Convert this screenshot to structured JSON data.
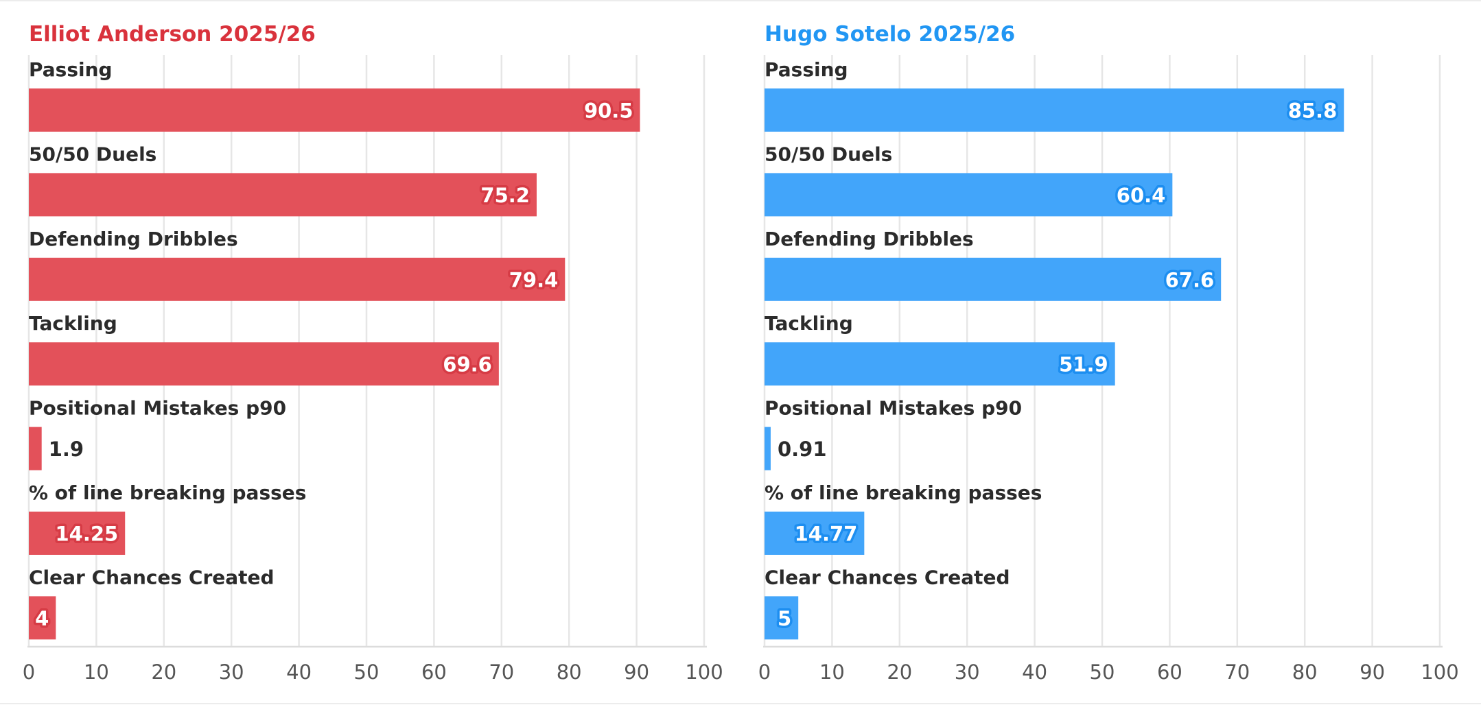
{
  "colors": {
    "player_one": "#e3515a",
    "player_one_stroke": "#d63b45",
    "player_one_title": "#d9323c",
    "player_two": "#42a5fa",
    "player_two_stroke": "#1d8ef0",
    "player_two_title": "#2196f3"
  },
  "chart_data": [
    {
      "type": "bar",
      "orientation": "horizontal",
      "title": "Elliot Anderson 2025/26",
      "color_key": "player_one",
      "categories": [
        "Passing",
        "50/50 Duels",
        "Defending Dribbles",
        "Tackling",
        "Positional Mistakes p90",
        "% of line breaking passes",
        "Clear Chances Created"
      ],
      "values": [
        90.5,
        75.2,
        79.4,
        69.6,
        1.9,
        14.25,
        4
      ],
      "value_labels": [
        "90.5",
        "75.2",
        "79.4",
        "69.6",
        "1.9",
        "14.25",
        "4"
      ],
      "xlim": [
        0,
        100
      ],
      "ticks": [
        "0",
        "10",
        "20",
        "30",
        "40",
        "50",
        "60",
        "70",
        "80",
        "90",
        "100"
      ],
      "grid": true
    },
    {
      "type": "bar",
      "orientation": "horizontal",
      "title": "Hugo Sotelo 2025/26",
      "color_key": "player_two",
      "categories": [
        "Passing",
        "50/50 Duels",
        "Defending Dribbles",
        "Tackling",
        "Positional Mistakes p90",
        "% of line breaking passes",
        "Clear Chances Created"
      ],
      "values": [
        85.8,
        60.4,
        67.6,
        51.9,
        0.91,
        14.77,
        5
      ],
      "value_labels": [
        "85.8",
        "60.4",
        "67.6",
        "51.9",
        "0.91",
        "14.77",
        "5"
      ],
      "xlim": [
        0,
        100
      ],
      "ticks": [
        "0",
        "10",
        "20",
        "30",
        "40",
        "50",
        "60",
        "70",
        "80",
        "90",
        "100"
      ],
      "grid": true
    }
  ]
}
